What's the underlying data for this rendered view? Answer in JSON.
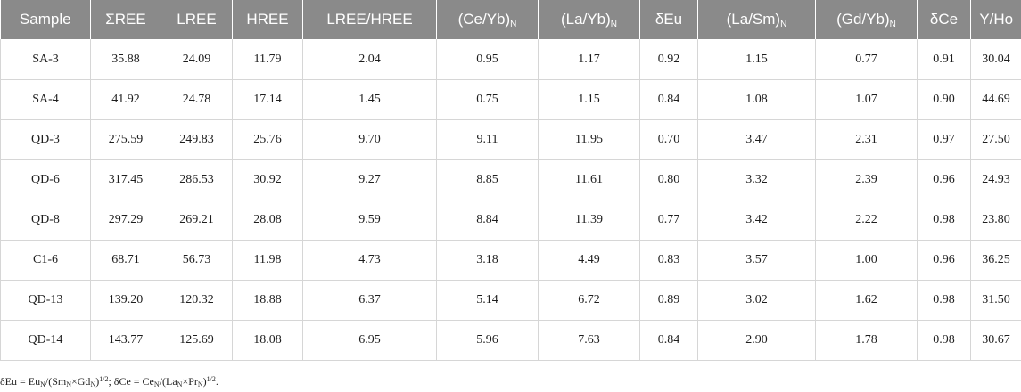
{
  "columns": [
    {
      "text": "Sample",
      "sub": ""
    },
    {
      "text": "ΣREE",
      "sub": ""
    },
    {
      "text": "LREE",
      "sub": ""
    },
    {
      "text": "HREE",
      "sub": ""
    },
    {
      "text": "LREE/HREE",
      "sub": ""
    },
    {
      "text": "(Ce/Yb)",
      "sub": "N"
    },
    {
      "text": "(La/Yb)",
      "sub": "N"
    },
    {
      "text": "δEu",
      "sub": ""
    },
    {
      "text": "(La/Sm)",
      "sub": "N"
    },
    {
      "text": "(Gd/Yb)",
      "sub": "N"
    },
    {
      "text": "δCe",
      "sub": ""
    },
    {
      "text": "Y/Ho",
      "sub": ""
    }
  ],
  "rows": [
    [
      "SA-3",
      "35.88",
      "24.09",
      "11.79",
      "2.04",
      "0.95",
      "1.17",
      "0.92",
      "1.15",
      "0.77",
      "0.91",
      "30.04"
    ],
    [
      "SA-4",
      "41.92",
      "24.78",
      "17.14",
      "1.45",
      "0.75",
      "1.15",
      "0.84",
      "1.08",
      "1.07",
      "0.90",
      "44.69"
    ],
    [
      "QD-3",
      "275.59",
      "249.83",
      "25.76",
      "9.70",
      "9.11",
      "11.95",
      "0.70",
      "3.47",
      "2.31",
      "0.97",
      "27.50"
    ],
    [
      "QD-6",
      "317.45",
      "286.53",
      "30.92",
      "9.27",
      "8.85",
      "11.61",
      "0.80",
      "3.32",
      "2.39",
      "0.96",
      "24.93"
    ],
    [
      "QD-8",
      "297.29",
      "269.21",
      "28.08",
      "9.59",
      "8.84",
      "11.39",
      "0.77",
      "3.42",
      "2.22",
      "0.98",
      "23.80"
    ],
    [
      "C1-6",
      "68.71",
      "56.73",
      "11.98",
      "4.73",
      "3.18",
      "4.49",
      "0.83",
      "3.57",
      "1.00",
      "0.96",
      "36.25"
    ],
    [
      "QD-13",
      "139.20",
      "120.32",
      "18.88",
      "6.37",
      "5.14",
      "6.72",
      "0.89",
      "3.02",
      "1.62",
      "0.98",
      "31.50"
    ],
    [
      "QD-14",
      "143.77",
      "125.69",
      "18.08",
      "6.95",
      "5.96",
      "7.63",
      "0.84",
      "2.90",
      "1.78",
      "0.98",
      "30.67"
    ]
  ],
  "footnote": {
    "eu": {
      "p1": "δEu = Eu",
      "s1": "N",
      "p2": "/(Sm",
      "s2": "N",
      "p3": "×Gd",
      "s3": "N",
      "p4": ")",
      "exp": "1/2",
      "p5": ";"
    },
    "ce": {
      "p1": " δCe = Ce",
      "s1": "N",
      "p2": "/(La",
      "s2": "N",
      "p3": "×Pr",
      "s3": "N",
      "p4": ")",
      "exp": "1/2",
      "p5": "."
    }
  }
}
